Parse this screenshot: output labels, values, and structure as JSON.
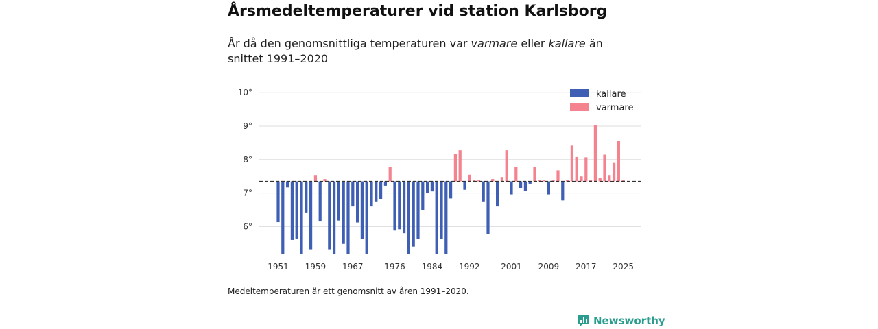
{
  "header": {
    "title": "Årsmedeltemperaturer vid station Karlsborg",
    "subtitle_prefix": "År då den genomsnittliga temperaturen var",
    "subtitle_word_warm": "varmare",
    "subtitle_or": "eller",
    "subtitle_word_cold": "kallare",
    "subtitle_suffix": "än snittet 1991–2020"
  },
  "footnote": "Medeltemperaturen är ett genomsnitt av åren 1991–2020.",
  "brand": {
    "name": "Newsworthy",
    "icon": "newsworthy-logo-icon"
  },
  "colors": {
    "cold": "#3f5fb5",
    "warm": "#f4838f",
    "grid": "#dddddd",
    "baseline": "#333333"
  },
  "chart_data": {
    "type": "bar",
    "title": "Årsmedeltemperaturer vid station Karlsborg",
    "baseline": 7.35,
    "ylim": [
      5.15,
      10.2
    ],
    "y_ticks": [
      6,
      7,
      8,
      9,
      10
    ],
    "y_tick_labels": [
      "6°",
      "7°",
      "8°",
      "9°",
      "10°"
    ],
    "x_ticks": [
      1951,
      1959,
      1967,
      1976,
      1984,
      1992,
      2001,
      2009,
      2017,
      2025
    ],
    "legend": [
      {
        "key": "cold",
        "label": "kallare"
      },
      {
        "key": "warm",
        "label": "varmare"
      }
    ],
    "legend_position": "top-right",
    "years": [
      1951,
      1952,
      1953,
      1954,
      1955,
      1956,
      1957,
      1958,
      1959,
      1960,
      1961,
      1962,
      1963,
      1964,
      1965,
      1966,
      1967,
      1968,
      1969,
      1970,
      1971,
      1972,
      1973,
      1974,
      1975,
      1976,
      1977,
      1978,
      1979,
      1980,
      1981,
      1982,
      1983,
      1984,
      1985,
      1986,
      1987,
      1988,
      1989,
      1990,
      1991,
      1992,
      1993,
      1994,
      1995,
      1996,
      1997,
      1998,
      1999,
      2000,
      2001,
      2002,
      2003,
      2004,
      2005,
      2006,
      2007,
      2008,
      2009,
      2010,
      2011,
      2012,
      2013,
      2014,
      2015,
      2016,
      2017,
      2018,
      2019,
      2020,
      2021,
      2022,
      2023,
      2024,
      2025
    ],
    "values": [
      6.13,
      5.18,
      7.17,
      5.6,
      5.64,
      5.18,
      6.4,
      5.3,
      7.52,
      6.15,
      7.42,
      5.3,
      5.18,
      6.18,
      5.48,
      5.18,
      6.6,
      6.12,
      5.62,
      5.18,
      6.6,
      6.75,
      6.82,
      7.22,
      7.78,
      5.88,
      5.92,
      5.8,
      5.18,
      5.4,
      5.62,
      6.5,
      7.0,
      7.05,
      5.18,
      5.62,
      5.18,
      6.84,
      8.18,
      8.28,
      7.1,
      7.55,
      7.38,
      7.38,
      6.75,
      5.78,
      7.42,
      6.6,
      7.48,
      8.28,
      6.96,
      7.78,
      7.15,
      7.06,
      7.28,
      7.78,
      7.38,
      7.38,
      6.96,
      7.38,
      7.68,
      6.78,
      7.38,
      8.42,
      8.08,
      7.5,
      8.07,
      7.38,
      9.04,
      7.46,
      8.15,
      7.52,
      7.9,
      8.57,
      7.38
    ]
  }
}
